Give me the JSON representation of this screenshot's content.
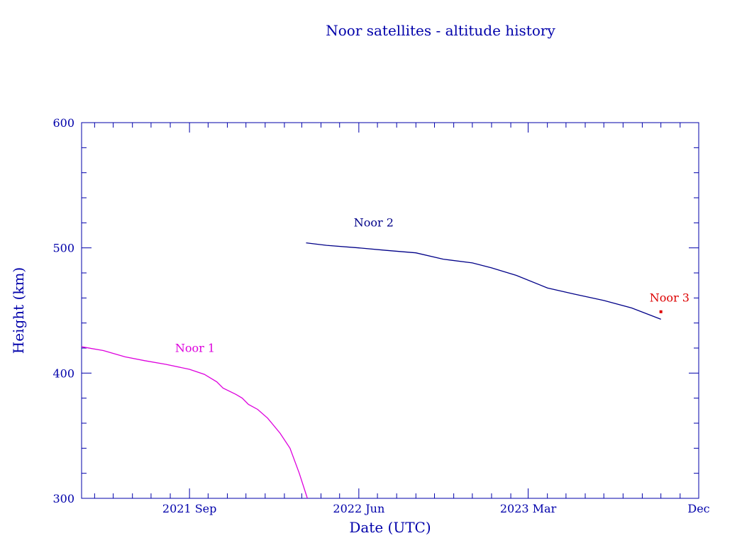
{
  "colors": {
    "axis": "#0000aa",
    "noor1": "#dd00dd",
    "noor2": "#000088",
    "noor3": "#dd0000"
  },
  "chart_data": {
    "type": "line",
    "title": "Noor satellites - altitude history",
    "xlabel": "Date (UTC)",
    "ylabel": "Height (km)",
    "xlim": [
      "2021-03-11",
      "2023-12-01"
    ],
    "ylim": [
      300,
      600
    ],
    "x_ticks": [
      {
        "date": "2021-09-01",
        "label": "2021 Sep"
      },
      {
        "date": "2022-06-01",
        "label": "2022 Jun"
      },
      {
        "date": "2023-03-01",
        "label": "2023 Mar"
      },
      {
        "date": "2023-12-01",
        "label": "Dec"
      }
    ],
    "y_ticks": [
      {
        "value": 300,
        "label": "300"
      },
      {
        "value": 400,
        "label": "400"
      },
      {
        "value": 500,
        "label": "500"
      },
      {
        "value": 600,
        "label": "600"
      }
    ],
    "grid": false,
    "series": [
      {
        "name": "Noor 1",
        "color": "#dd00dd",
        "points": [
          {
            "x": "2021-03-11",
            "y": 421
          },
          {
            "x": "2021-04-15",
            "y": 418
          },
          {
            "x": "2021-05-20",
            "y": 413
          },
          {
            "x": "2021-06-20",
            "y": 410
          },
          {
            "x": "2021-07-25",
            "y": 407
          },
          {
            "x": "2021-09-01",
            "y": 403
          },
          {
            "x": "2021-09-25",
            "y": 399
          },
          {
            "x": "2021-10-15",
            "y": 393
          },
          {
            "x": "2021-10-25",
            "y": 388
          },
          {
            "x": "2021-11-15",
            "y": 383
          },
          {
            "x": "2021-11-25",
            "y": 380
          },
          {
            "x": "2021-12-05",
            "y": 375
          },
          {
            "x": "2021-12-20",
            "y": 371
          },
          {
            "x": "2022-01-05",
            "y": 364
          },
          {
            "x": "2022-01-25",
            "y": 352
          },
          {
            "x": "2022-02-10",
            "y": 340
          },
          {
            "x": "2022-02-25",
            "y": 320
          },
          {
            "x": "2022-03-10",
            "y": 300
          }
        ]
      },
      {
        "name": "Noor 2",
        "color": "#000088",
        "points": [
          {
            "x": "2022-03-08",
            "y": 504
          },
          {
            "x": "2022-04-10",
            "y": 502
          },
          {
            "x": "2022-06-01",
            "y": 500
          },
          {
            "x": "2022-07-15",
            "y": 498
          },
          {
            "x": "2022-09-01",
            "y": 496
          },
          {
            "x": "2022-10-15",
            "y": 491
          },
          {
            "x": "2022-12-01",
            "y": 488
          },
          {
            "x": "2023-01-01",
            "y": 484
          },
          {
            "x": "2023-02-10",
            "y": 478
          },
          {
            "x": "2023-04-01",
            "y": 468
          },
          {
            "x": "2023-05-15",
            "y": 463
          },
          {
            "x": "2023-07-01",
            "y": 458
          },
          {
            "x": "2023-08-15",
            "y": 452
          },
          {
            "x": "2023-10-01",
            "y": 443
          }
        ]
      },
      {
        "name": "Noor 3",
        "color": "#dd0000",
        "points": [
          {
            "x": "2023-10-01",
            "y": 449
          }
        ]
      }
    ],
    "annotations": [
      {
        "text": "Noor 1",
        "x": "2021-09-10",
        "y": 417,
        "color": "#dd00dd"
      },
      {
        "text": "Noor 2",
        "x": "2022-06-25",
        "y": 517,
        "color": "#000088"
      },
      {
        "text": "Noor 3",
        "x": "2023-10-15",
        "y": 457,
        "color": "#dd0000"
      }
    ]
  }
}
